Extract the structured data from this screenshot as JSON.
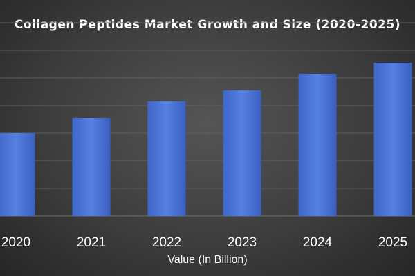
{
  "chart_data": {
    "type": "bar",
    "title": "Collagen Peptides Market Growth and Size (2020-2025)",
    "xlabel": "Value (In Billion)",
    "ylabel": "",
    "categories": [
      "2020",
      "2021",
      "2022",
      "2023",
      "2024",
      "2025"
    ],
    "values": [
      3.0,
      3.55,
      4.15,
      4.55,
      5.15,
      5.55
    ],
    "ylim": [
      0,
      7
    ],
    "grid": true,
    "legend": "none",
    "bar_color": "#4a72d4",
    "gridline_color": "#5f5f5f",
    "background_color": "#3a3a3a"
  }
}
